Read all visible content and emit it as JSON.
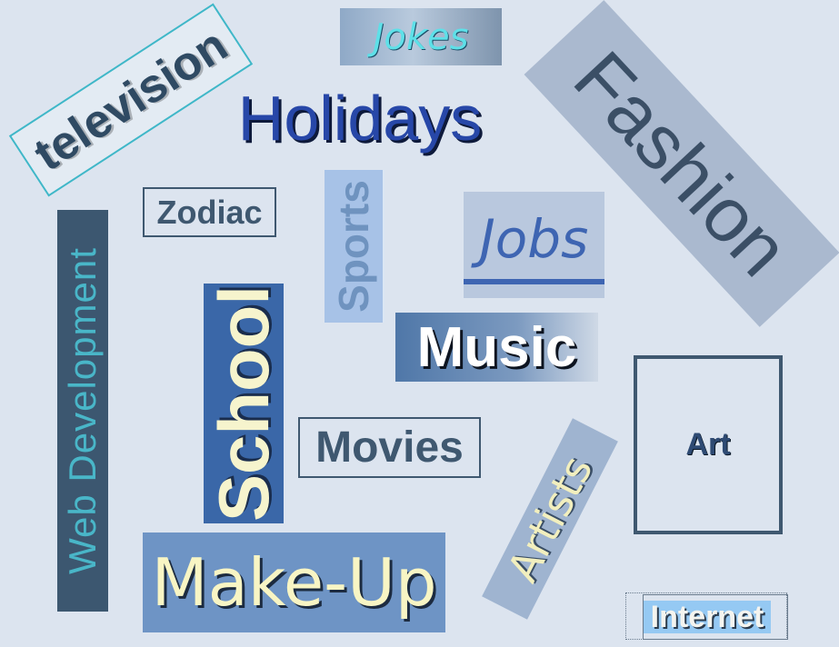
{
  "words": {
    "television": "television",
    "jokes": "Jokes",
    "holidays": "Holidays",
    "fashion": "Fashion",
    "zodiac": "Zodiac",
    "sports": "Sports",
    "jobs": "Jobs",
    "web_development": "Web Development",
    "school": "School",
    "music": "Music",
    "movies": "Movies",
    "art": "Art",
    "artists": "Artists",
    "make_up": "Make-Up",
    "internet": "Internet"
  },
  "colors": {
    "background": "#dce4ef",
    "holidays_text": "#2747a8",
    "school_box": "#3a67a8",
    "web_development_box": "#3c5770",
    "make_up_box": "#6e94c5"
  }
}
